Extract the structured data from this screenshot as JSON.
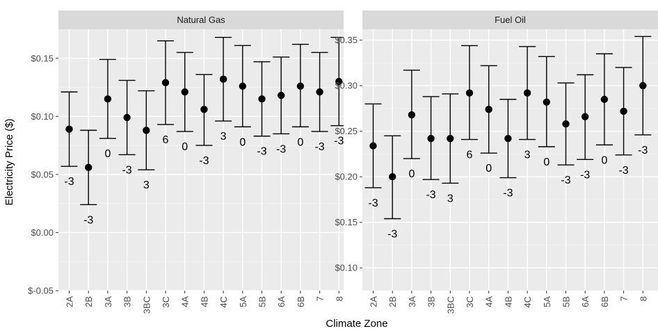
{
  "chart_data": [
    {
      "type": "errorbar",
      "title": "Natural Gas",
      "ylabel": "Electricity Price ($)",
      "xlabel": "Climate Zone",
      "ylim": [
        -0.05,
        0.175
      ],
      "yticks": [
        -0.05,
        0.0,
        0.05,
        0.1,
        0.15
      ],
      "ytick_labels": [
        "$-0.05",
        "$0.00",
        "$0.05",
        "$0.10",
        "$0.15"
      ],
      "categories": [
        "2A",
        "2B",
        "3A",
        "3B",
        "3BC",
        "3C",
        "4A",
        "4B",
        "4C",
        "5A",
        "5B",
        "6A",
        "6B",
        "7",
        "8"
      ],
      "points": [
        {
          "x": "2A",
          "mean": 0.089,
          "lower": 0.057,
          "upper": 0.121,
          "label": "-3"
        },
        {
          "x": "2B",
          "mean": 0.056,
          "lower": 0.024,
          "upper": 0.088,
          "label": "-3"
        },
        {
          "x": "3A",
          "mean": 0.115,
          "lower": 0.081,
          "upper": 0.149,
          "label": "0"
        },
        {
          "x": "3B",
          "mean": 0.099,
          "lower": 0.067,
          "upper": 0.131,
          "label": "-3"
        },
        {
          "x": "3BC",
          "mean": 0.088,
          "lower": 0.054,
          "upper": 0.122,
          "label": "3"
        },
        {
          "x": "3C",
          "mean": 0.129,
          "lower": 0.093,
          "upper": 0.165,
          "label": "6"
        },
        {
          "x": "4A",
          "mean": 0.121,
          "lower": 0.087,
          "upper": 0.155,
          "label": "0"
        },
        {
          "x": "4B",
          "mean": 0.106,
          "lower": 0.075,
          "upper": 0.136,
          "label": "-3"
        },
        {
          "x": "4C",
          "mean": 0.132,
          "lower": 0.096,
          "upper": 0.168,
          "label": "3"
        },
        {
          "x": "5A",
          "mean": 0.126,
          "lower": 0.091,
          "upper": 0.161,
          "label": "0"
        },
        {
          "x": "5B",
          "mean": 0.115,
          "lower": 0.083,
          "upper": 0.147,
          "label": "-3"
        },
        {
          "x": "6A",
          "mean": 0.118,
          "lower": 0.085,
          "upper": 0.151,
          "label": "-3"
        },
        {
          "x": "6B",
          "mean": 0.126,
          "lower": 0.091,
          "upper": 0.162,
          "label": "0"
        },
        {
          "x": "7",
          "mean": 0.121,
          "lower": 0.087,
          "upper": 0.155,
          "label": "-3"
        },
        {
          "x": "8",
          "mean": 0.13,
          "lower": 0.092,
          "upper": 0.168,
          "label": "-3"
        }
      ],
      "grid": true
    },
    {
      "type": "errorbar",
      "title": "Fuel Oil",
      "ylabel": "Electricity Price ($)",
      "xlabel": "Climate Zone",
      "ylim": [
        0.075,
        0.362
      ],
      "yticks": [
        0.1,
        0.15,
        0.2,
        0.25,
        0.3,
        0.35
      ],
      "ytick_labels": [
        "$0.10",
        "$0.15",
        "$0.20",
        "$0.25",
        "$0.30",
        "$0.35"
      ],
      "categories": [
        "2A",
        "2B",
        "3A",
        "3B",
        "3BC",
        "3C",
        "4A",
        "4B",
        "4C",
        "5A",
        "5B",
        "6A",
        "6B",
        "7",
        "8"
      ],
      "points": [
        {
          "x": "2A",
          "mean": 0.234,
          "lower": 0.188,
          "upper": 0.28,
          "label": "-3"
        },
        {
          "x": "2B",
          "mean": 0.2,
          "lower": 0.154,
          "upper": 0.245,
          "label": "-3"
        },
        {
          "x": "3A",
          "mean": 0.268,
          "lower": 0.22,
          "upper": 0.317,
          "label": "0"
        },
        {
          "x": "3B",
          "mean": 0.242,
          "lower": 0.197,
          "upper": 0.288,
          "label": "-3"
        },
        {
          "x": "3BC",
          "mean": 0.242,
          "lower": 0.193,
          "upper": 0.291,
          "label": "3"
        },
        {
          "x": "3C",
          "mean": 0.292,
          "lower": 0.241,
          "upper": 0.344,
          "label": "6"
        },
        {
          "x": "4A",
          "mean": 0.274,
          "lower": 0.226,
          "upper": 0.322,
          "label": "0"
        },
        {
          "x": "4B",
          "mean": 0.242,
          "lower": 0.199,
          "upper": 0.285,
          "label": "-3"
        },
        {
          "x": "4C",
          "mean": 0.292,
          "lower": 0.241,
          "upper": 0.343,
          "label": "3"
        },
        {
          "x": "5A",
          "mean": 0.282,
          "lower": 0.233,
          "upper": 0.332,
          "label": "0"
        },
        {
          "x": "5B",
          "mean": 0.258,
          "lower": 0.213,
          "upper": 0.303,
          "label": "-3"
        },
        {
          "x": "6A",
          "mean": 0.266,
          "lower": 0.219,
          "upper": 0.312,
          "label": "-3"
        },
        {
          "x": "6B",
          "mean": 0.285,
          "lower": 0.235,
          "upper": 0.335,
          "label": "0"
        },
        {
          "x": "7",
          "mean": 0.272,
          "lower": 0.224,
          "upper": 0.32,
          "label": "-3"
        },
        {
          "x": "8",
          "mean": 0.3,
          "lower": 0.246,
          "upper": 0.354,
          "label": "-3"
        }
      ],
      "grid": true
    }
  ],
  "axis_titles": {
    "y": "Electricity Price ($)",
    "x": "Climate Zone"
  },
  "colors": {
    "panel_bg": "#ebebeb",
    "strip_bg": "#d9d9d9",
    "grid_major": "#ffffff",
    "grid_minor": "#f5f5f5",
    "mark": "#000000"
  }
}
